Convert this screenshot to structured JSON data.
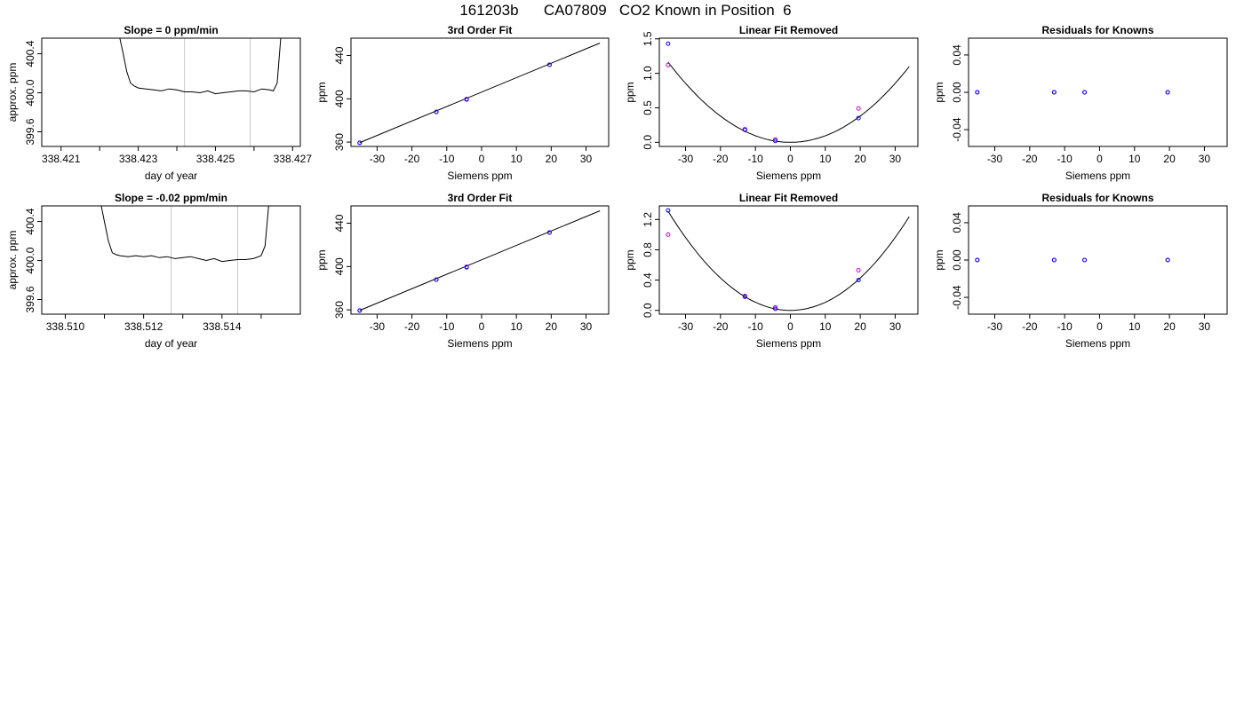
{
  "page": {
    "title": "161203b      CA07809   CO2 Known in Position  6"
  },
  "chart_data": [
    {
      "type": "line",
      "title": "Slope =  0  ppm/min",
      "xlabel": "day of year",
      "ylabel": "approx. ppm",
      "xlim": [
        338.4205,
        338.4272
      ],
      "ylim": [
        399.45,
        400.56
      ],
      "xticks": [
        338.421,
        338.422,
        338.423,
        338.424,
        338.425,
        338.426,
        338.427
      ],
      "xtick_labels": [
        "338.421",
        "",
        "338.423",
        "",
        "338.425",
        "",
        "338.427"
      ],
      "yticks": [
        399.6,
        400.0,
        400.4
      ],
      "ytick_labels": [
        "399.6",
        "400.0",
        "400.4"
      ],
      "vlines": [
        338.4242,
        338.4259
      ],
      "vline_color": "#c8c8c8",
      "line_color": "#000000",
      "series": [
        {
          "x": [
            338.4225,
            338.4226,
            338.4227,
            338.4228,
            338.4229,
            338.423,
            338.4232,
            338.4234,
            338.4236,
            338.4238,
            338.424,
            338.4242,
            338.4244,
            338.4246,
            338.4248,
            338.425,
            338.4252,
            338.4254,
            338.4256,
            338.4258,
            338.426,
            338.4262,
            338.4264,
            338.4265,
            338.4266,
            338.4267
          ],
          "y": [
            400.6,
            400.42,
            400.22,
            400.1,
            400.07,
            400.05,
            400.04,
            400.03,
            400.02,
            400.04,
            400.03,
            400.01,
            400.01,
            400.0,
            400.02,
            399.99,
            400.0,
            400.01,
            400.02,
            400.02,
            400.01,
            400.04,
            400.03,
            400.02,
            400.1,
            400.6
          ]
        }
      ]
    },
    {
      "type": "scatter",
      "title": "3rd Order Fit",
      "xlabel": "Siemens ppm",
      "ylabel": "ppm",
      "xlim": [
        -37.5,
        36.5
      ],
      "ylim": [
        356,
        456
      ],
      "xticks": [
        -30,
        -20,
        -10,
        0,
        10,
        20,
        30
      ],
      "xtick_labels": [
        "-30",
        "-20",
        "-10",
        "0",
        "10",
        "20",
        "30"
      ],
      "yticks": [
        360,
        400,
        440
      ],
      "ytick_labels": [
        "360",
        "400",
        "440"
      ],
      "curve": {
        "x0": -35,
        "x1": 34,
        "y0": 359.5,
        "y1": 451.5
      },
      "series": [
        {
          "color": "#cc00cc",
          "x": [
            -35,
            -13,
            -4.3,
            19.5
          ],
          "y": [
            359.4,
            387.9,
            399.8,
            431.4
          ]
        },
        {
          "color": "#0000ff",
          "x": [
            -35,
            -13,
            -4.3,
            19.5
          ],
          "y": [
            359.4,
            387.9,
            399.3,
            431.4
          ]
        }
      ]
    },
    {
      "type": "scatter",
      "title": "Linear Fit Removed",
      "xlabel": "Siemens ppm",
      "ylabel": "ppm",
      "xlim": [
        -37.5,
        36.5
      ],
      "ylim": [
        -0.06,
        1.51
      ],
      "xticks": [
        -30,
        -20,
        -10,
        0,
        10,
        20,
        30
      ],
      "xtick_labels": [
        "-30",
        "-20",
        "-10",
        "0",
        "10",
        "20",
        "30"
      ],
      "yticks": [
        0.0,
        0.5,
        1.0,
        1.5
      ],
      "ytick_labels": [
        "0.0",
        "0.5",
        "1.0",
        "1.5"
      ],
      "curve": {
        "x0": -35,
        "x1": 34,
        "a": 0.00095,
        "b": 0.0,
        "c": 0.0
      },
      "series": [
        {
          "color": "#cc00cc",
          "x": [
            -35,
            -13,
            -4.3,
            19.5
          ],
          "y": [
            1.12,
            0.19,
            0.04,
            0.49
          ]
        },
        {
          "color": "#0000ff",
          "x": [
            -35,
            -13,
            -4.3,
            19.5
          ],
          "y": [
            1.43,
            0.18,
            0.02,
            0.35
          ]
        }
      ]
    },
    {
      "type": "scatter",
      "title": "Residuals for Knowns",
      "xlabel": "Siemens ppm",
      "ylabel": "ppm",
      "xlim": [
        -37.5,
        36.5
      ],
      "ylim": [
        -0.058,
        0.058
      ],
      "xticks": [
        -30,
        -20,
        -10,
        0,
        10,
        20,
        30
      ],
      "xtick_labels": [
        "-30",
        "-20",
        "-10",
        "0",
        "10",
        "20",
        "30"
      ],
      "yticks": [
        -0.04,
        0.0,
        0.04
      ],
      "ytick_labels": [
        "-0.04",
        "0.00",
        "0.04"
      ],
      "series": [
        {
          "color": "#cc00cc",
          "x": [
            -35,
            -13,
            -4.3,
            19.5
          ],
          "y": [
            0,
            0,
            0,
            0
          ]
        },
        {
          "color": "#0000ff",
          "x": [
            -35,
            -13,
            -4.3,
            19.5
          ],
          "y": [
            0,
            0,
            0,
            0
          ]
        }
      ]
    },
    {
      "type": "line",
      "title": "Slope =  -0.02  ppm/min",
      "xlabel": "day of year",
      "ylabel": "approx. ppm",
      "xlim": [
        338.5094,
        338.516
      ],
      "ylim": [
        399.45,
        400.56
      ],
      "xticks": [
        338.51,
        338.511,
        338.512,
        338.513,
        338.514,
        338.515
      ],
      "xtick_labels": [
        "338.510",
        "",
        "338.512",
        "",
        "338.514",
        ""
      ],
      "yticks": [
        399.6,
        400.0,
        400.4
      ],
      "ytick_labels": [
        "399.6",
        "400.0",
        "400.4"
      ],
      "vlines": [
        338.5127,
        338.5144
      ],
      "vline_color": "#c8c8c8",
      "line_color": "#000000",
      "series": [
        {
          "x": [
            338.5109,
            338.511,
            338.5111,
            338.5112,
            338.5113,
            338.5114,
            338.5116,
            338.5118,
            338.512,
            338.5122,
            338.5124,
            338.5126,
            338.5128,
            338.513,
            338.5132,
            338.5134,
            338.5136,
            338.5138,
            338.514,
            338.5142,
            338.5144,
            338.5146,
            338.5148,
            338.515,
            338.5151,
            338.5152
          ],
          "y": [
            400.6,
            400.4,
            400.2,
            400.08,
            400.06,
            400.05,
            400.04,
            400.05,
            400.04,
            400.05,
            400.03,
            400.04,
            400.02,
            400.03,
            400.04,
            400.02,
            400.0,
            400.02,
            399.99,
            400.0,
            400.01,
            400.01,
            400.02,
            400.05,
            400.15,
            400.6
          ]
        }
      ]
    },
    {
      "type": "scatter",
      "title": "3rd Order Fit",
      "xlabel": "Siemens ppm",
      "ylabel": "ppm",
      "xlim": [
        -37.5,
        36.5
      ],
      "ylim": [
        356,
        456
      ],
      "xticks": [
        -30,
        -20,
        -10,
        0,
        10,
        20,
        30
      ],
      "xtick_labels": [
        "-30",
        "-20",
        "-10",
        "0",
        "10",
        "20",
        "30"
      ],
      "yticks": [
        360,
        400,
        440
      ],
      "ytick_labels": [
        "360",
        "400",
        "440"
      ],
      "curve": {
        "x0": -35,
        "x1": 34,
        "y0": 359.5,
        "y1": 451.5
      },
      "series": [
        {
          "color": "#cc00cc",
          "x": [
            -35,
            -13,
            -4.3,
            19.5
          ],
          "y": [
            359.4,
            387.9,
            399.8,
            431.4
          ]
        },
        {
          "color": "#0000ff",
          "x": [
            -35,
            -13,
            -4.3,
            19.5
          ],
          "y": [
            359.4,
            387.9,
            399.3,
            431.4
          ]
        }
      ]
    },
    {
      "type": "scatter",
      "title": "Linear Fit Removed",
      "xlabel": "Siemens ppm",
      "ylabel": "ppm",
      "xlim": [
        -37.5,
        36.5
      ],
      "ylim": [
        -0.05,
        1.38
      ],
      "xticks": [
        -30,
        -20,
        -10,
        0,
        10,
        20,
        30
      ],
      "xtick_labels": [
        "-30",
        "-20",
        "-10",
        "0",
        "10",
        "20",
        "30"
      ],
      "yticks": [
        0.0,
        0.4,
        0.8,
        1.2
      ],
      "ytick_labels": [
        "0.0",
        "0.4",
        "0.8",
        "1.2"
      ],
      "curve": {
        "x0": -35,
        "x1": 34,
        "a": 0.00107,
        "b": 0.0,
        "c": 0.0
      },
      "series": [
        {
          "color": "#cc00cc",
          "x": [
            -35,
            -13,
            -4.3,
            19.5
          ],
          "y": [
            1.0,
            0.19,
            0.04,
            0.53
          ]
        },
        {
          "color": "#0000ff",
          "x": [
            -35,
            -13,
            -4.3,
            19.5
          ],
          "y": [
            1.32,
            0.18,
            0.02,
            0.4
          ]
        }
      ]
    },
    {
      "type": "scatter",
      "title": "Residuals for Knowns",
      "xlabel": "Siemens ppm",
      "ylabel": "ppm",
      "xlim": [
        -37.5,
        36.5
      ],
      "ylim": [
        -0.058,
        0.058
      ],
      "xticks": [
        -30,
        -20,
        -10,
        0,
        10,
        20,
        30
      ],
      "xtick_labels": [
        "-30",
        "-20",
        "-10",
        "0",
        "10",
        "20",
        "30"
      ],
      "yticks": [
        -0.04,
        0.0,
        0.04
      ],
      "ytick_labels": [
        "-0.04",
        "0.00",
        "0.04"
      ],
      "series": [
        {
          "color": "#cc00cc",
          "x": [
            -35,
            -13,
            -4.3,
            19.5
          ],
          "y": [
            0,
            0,
            0,
            0
          ]
        },
        {
          "color": "#0000ff",
          "x": [
            -35,
            -13,
            -4.3,
            19.5
          ],
          "y": [
            0,
            0,
            0,
            0
          ]
        }
      ]
    }
  ]
}
